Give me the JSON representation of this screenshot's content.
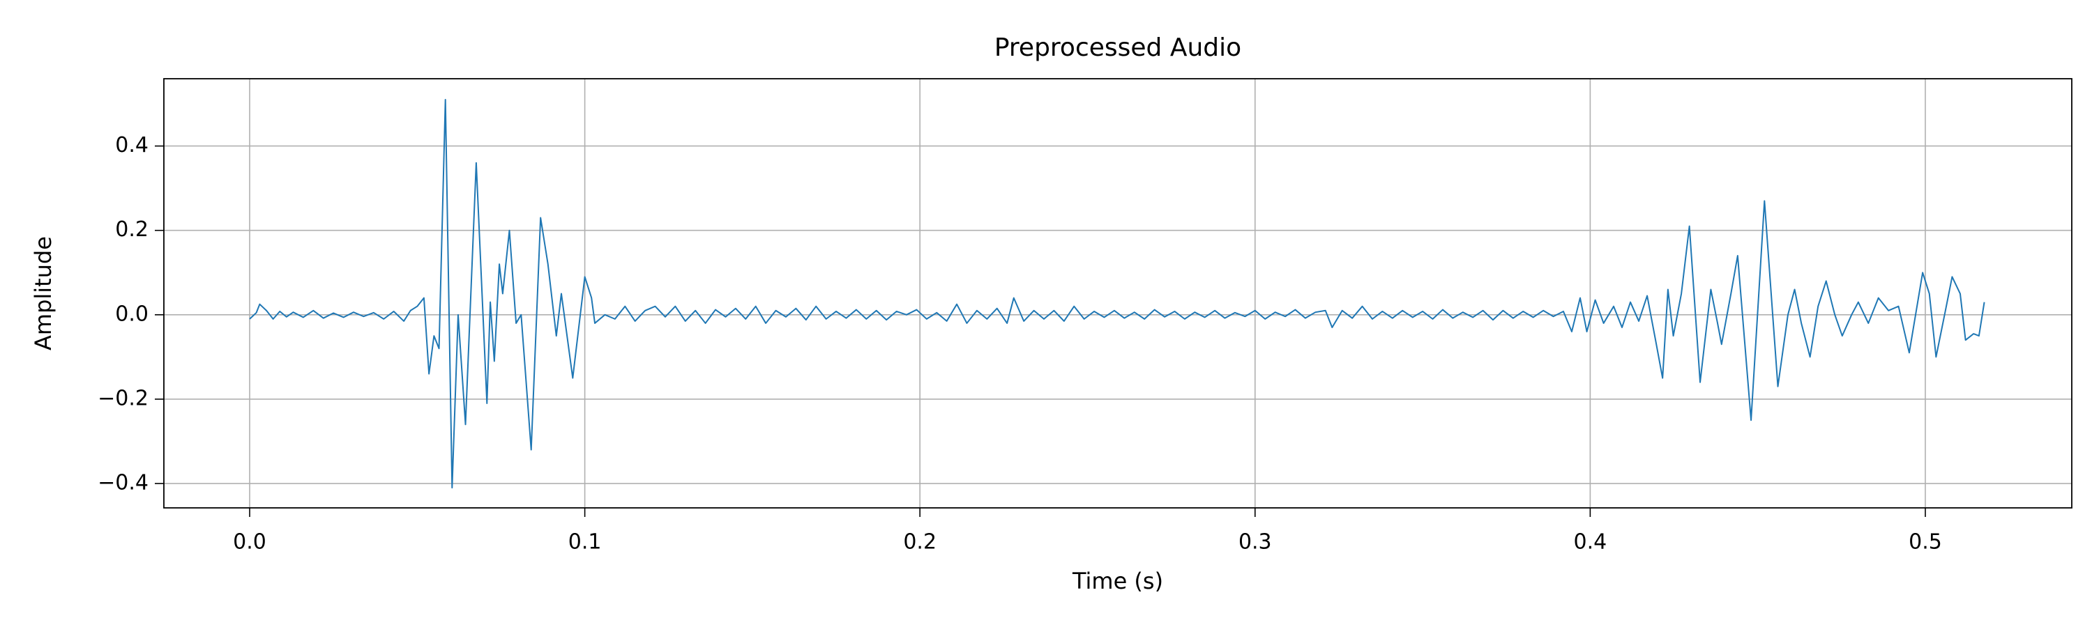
{
  "chart_data": {
    "type": "line",
    "title": "Preprocessed Audio",
    "xlabel": "Time (s)",
    "ylabel": "Amplitude",
    "color": "#1f77b4",
    "grid": true,
    "xlim": [
      -0.0256,
      0.5437
    ],
    "ylim": [
      -0.4577,
      0.5595
    ],
    "xticks": [
      {
        "value": 0,
        "label": "0.0"
      },
      0.1,
      0.2,
      0.3,
      0.4,
      0.5
    ],
    "yticks": [
      {
        "value": -0.4,
        "label": "−0.4"
      },
      {
        "value": -0.2,
        "label": "−0.2"
      },
      {
        "value": 0,
        "label": "0.0"
      },
      0.2,
      0.4
    ],
    "x": [
      0,
      0.002,
      0.003,
      0.005,
      0.007,
      0.009,
      0.011,
      0.013,
      0.016,
      0.019,
      0.022,
      0.025,
      0.028,
      0.031,
      0.034,
      0.037,
      0.04,
      0.043,
      0.046,
      0.048,
      0.05,
      0.052,
      0.0535,
      0.055,
      0.0565,
      0.0584,
      0.0604,
      0.0622,
      0.0644,
      0.0676,
      0.0708,
      0.0718,
      0.073,
      0.0745,
      0.0755,
      0.0775,
      0.0795,
      0.081,
      0.084,
      0.0868,
      0.089,
      0.0915,
      0.093,
      0.0964,
      0.1,
      0.102,
      0.103,
      0.106,
      0.109,
      0.112,
      0.115,
      0.118,
      0.121,
      0.124,
      0.127,
      0.13,
      0.133,
      0.136,
      0.139,
      0.142,
      0.145,
      0.148,
      0.151,
      0.154,
      0.157,
      0.16,
      0.163,
      0.166,
      0.169,
      0.172,
      0.175,
      0.178,
      0.181,
      0.184,
      0.187,
      0.19,
      0.193,
      0.196,
      0.199,
      0.202,
      0.205,
      0.208,
      0.211,
      0.214,
      0.217,
      0.22,
      0.223,
      0.226,
      0.228,
      0.231,
      0.234,
      0.237,
      0.24,
      0.243,
      0.246,
      0.249,
      0.252,
      0.255,
      0.258,
      0.261,
      0.264,
      0.267,
      0.27,
      0.273,
      0.276,
      0.279,
      0.282,
      0.285,
      0.288,
      0.291,
      0.294,
      0.297,
      0.3,
      0.303,
      0.306,
      0.309,
      0.312,
      0.315,
      0.318,
      0.321,
      0.323,
      0.326,
      0.329,
      0.332,
      0.335,
      0.338,
      0.341,
      0.344,
      0.347,
      0.35,
      0.353,
      0.356,
      0.359,
      0.362,
      0.365,
      0.368,
      0.371,
      0.374,
      0.377,
      0.38,
      0.383,
      0.386,
      0.389,
      0.392,
      0.3945,
      0.397,
      0.399,
      0.4015,
      0.404,
      0.407,
      0.4095,
      0.412,
      0.4145,
      0.417,
      0.4195,
      0.4216,
      0.4232,
      0.4248,
      0.4272,
      0.4296,
      0.4328,
      0.436,
      0.438,
      0.4392,
      0.442,
      0.444,
      0.448,
      0.452,
      0.456,
      0.459,
      0.461,
      0.463,
      0.4656,
      0.468,
      0.4704,
      0.473,
      0.4752,
      0.478,
      0.48,
      0.483,
      0.486,
      0.489,
      0.492,
      0.4952,
      0.4992,
      0.5012,
      0.5032,
      0.506,
      0.508,
      0.5104,
      0.512,
      0.5144,
      0.516,
      0.5176
    ],
    "values": [
      -0.01,
      0.005,
      0.025,
      0.01,
      -0.01,
      0.008,
      -0.005,
      0.006,
      -0.006,
      0.01,
      -0.008,
      0.004,
      -0.006,
      0.006,
      -0.004,
      0.005,
      -0.01,
      0.008,
      -0.015,
      0.01,
      0.02,
      0.04,
      -0.14,
      -0.05,
      -0.08,
      0.51,
      -0.41,
      0.0,
      -0.26,
      0.36,
      -0.21,
      0.03,
      -0.11,
      0.12,
      0.05,
      0.2,
      -0.02,
      0.0,
      -0.32,
      0.23,
      0.12,
      -0.05,
      0.05,
      -0.15,
      0.09,
      0.04,
      -0.02,
      0.0,
      -0.01,
      0.02,
      -0.015,
      0.01,
      0.02,
      -0.005,
      0.02,
      -0.015,
      0.01,
      -0.02,
      0.012,
      -0.005,
      0.015,
      -0.01,
      0.02,
      -0.02,
      0.01,
      -0.005,
      0.015,
      -0.012,
      0.02,
      -0.01,
      0.008,
      -0.008,
      0.012,
      -0.01,
      0.01,
      -0.012,
      0.008,
      0.0,
      0.012,
      -0.01,
      0.005,
      -0.015,
      0.025,
      -0.02,
      0.01,
      -0.01,
      0.015,
      -0.02,
      0.04,
      -0.015,
      0.01,
      -0.01,
      0.01,
      -0.015,
      0.02,
      -0.01,
      0.008,
      -0.006,
      0.01,
      -0.008,
      0.006,
      -0.01,
      0.012,
      -0.005,
      0.008,
      -0.01,
      0.006,
      -0.006,
      0.01,
      -0.008,
      0.005,
      -0.004,
      0.01,
      -0.01,
      0.006,
      -0.004,
      0.012,
      -0.008,
      0.006,
      0.01,
      -0.03,
      0.01,
      -0.008,
      0.02,
      -0.01,
      0.008,
      -0.008,
      0.01,
      -0.006,
      0.008,
      -0.01,
      0.012,
      -0.008,
      0.006,
      -0.006,
      0.01,
      -0.012,
      0.01,
      -0.008,
      0.008,
      -0.006,
      0.01,
      -0.004,
      0.008,
      -0.04,
      0.04,
      -0.04,
      0.035,
      -0.02,
      0.02,
      -0.03,
      0.03,
      -0.015,
      0.045,
      -0.06,
      -0.15,
      0.06,
      -0.05,
      0.05,
      0.21,
      -0.16,
      0.06,
      -0.02,
      -0.07,
      0.05,
      0.14,
      -0.25,
      0.27,
      -0.17,
      0.0,
      0.06,
      -0.02,
      -0.1,
      0.02,
      0.08,
      0.0,
      -0.05,
      0.0,
      0.03,
      -0.02,
      0.04,
      0.01,
      0.02,
      -0.09,
      0.1,
      0.05,
      -0.1,
      0.01,
      0.09,
      0.05,
      -0.06,
      -0.045,
      -0.05,
      0.03
    ]
  }
}
